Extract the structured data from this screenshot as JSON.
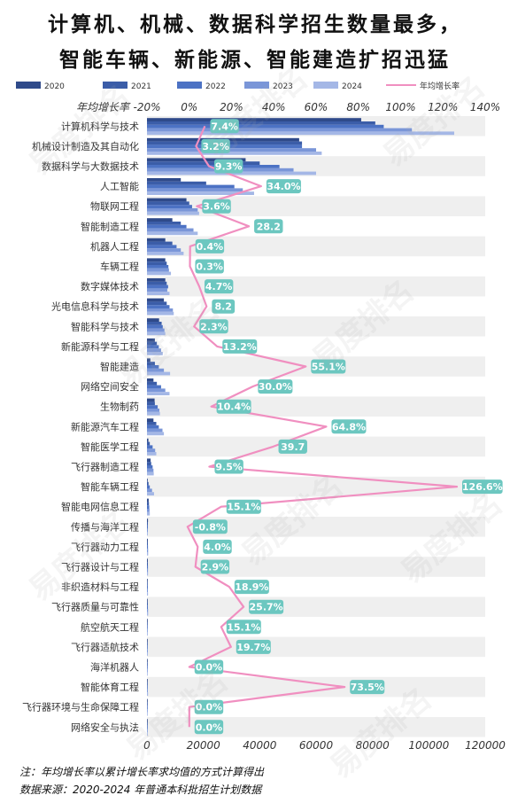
{
  "title_line1": "计算机、机械、数据科学招生数量最多，",
  "title_line2": "智能车辆、新能源、智能建造扩招迅猛",
  "watermark": "易度排名",
  "note": "注：年均增长率以累计增长率求均值的方式计算得出",
  "source": "数据来源：2020-2024 年普通本科批招生计划数据",
  "colors": {
    "series": [
      "#2f4a8a",
      "#3b5da8",
      "#4c72c4",
      "#7a96d8",
      "#a4b7e6"
    ],
    "line": "#f08fc0",
    "label_bg": "#6cc7c0",
    "band": "#efefef",
    "axis_text": "#333333"
  },
  "chart_data": {
    "type": "bar",
    "orientation": "horizontal",
    "top_axis_title": "年均增长率",
    "x_top_ticks": [
      "-20%",
      "0%",
      "20%",
      "40%",
      "60%",
      "80%",
      "100%",
      "120%",
      "140%"
    ],
    "x_top_range": [
      -20,
      140
    ],
    "x_bottom_ticks": [
      "0",
      "20000",
      "40000",
      "60000",
      "80000",
      "100000",
      "120000"
    ],
    "x_bottom_range": [
      0,
      120000
    ],
    "legend_position": "top",
    "series_names": [
      "2020",
      "2021",
      "2022",
      "2023",
      "2024"
    ],
    "line_name": "年均增长率",
    "categories": [
      "计算机科学与技术",
      "机械设计制造及其自动化",
      "数据科学与大数据技术",
      "人工智能",
      "物联网工程",
      "智能制造工程",
      "机器人工程",
      "车辆工程",
      "数字媒体技术",
      "光电信息科学与技术",
      "智能科学与技术",
      "新能源科学与工程",
      "智能建造",
      "网络空间安全",
      "生物制药",
      "新能源汽车工程",
      "智能医学工程",
      "飞行器制造工程",
      "智能车辆工程",
      "智能电网信息工程",
      "传播与海洋工程",
      "飞行器动力工程",
      "飞行器设计与工程",
      "非织造材料与工程",
      "飞行器质量与可靠性",
      "航空航天工程",
      "飞行器适航技术",
      "海洋机器人",
      "智能体育工程",
      "飞行器环境与生命保障工程",
      "网络安全与执法"
    ],
    "series": [
      {
        "name": "2020",
        "values": [
          76000,
          54000,
          35000,
          12000,
          14000,
          9000,
          6500,
          6500,
          6500,
          6000,
          4300,
          2800,
          1200,
          2300,
          2700,
          2300,
          500,
          1300,
          200,
          600,
          350,
          300,
          300,
          200,
          200,
          150,
          150,
          50,
          30,
          30,
          30
        ]
      },
      {
        "name": "2021",
        "values": [
          81000,
          55000,
          40000,
          21000,
          15000,
          12000,
          9000,
          7000,
          7000,
          7000,
          5200,
          3500,
          2800,
          3500,
          2800,
          3300,
          1000,
          1500,
          550,
          700,
          320,
          320,
          320,
          250,
          300,
          200,
          200,
          80,
          80,
          40,
          30
        ]
      },
      {
        "name": "2022",
        "values": [
          84000,
          55000,
          47000,
          31000,
          16000,
          14000,
          10500,
          7600,
          7500,
          8000,
          5600,
          4200,
          4200,
          5000,
          3800,
          4200,
          2000,
          2000,
          1000,
          800,
          320,
          350,
          340,
          300,
          320,
          240,
          250,
          120,
          150,
          40,
          30
        ]
      },
      {
        "name": "2023",
        "values": [
          94000,
          60000,
          52000,
          34000,
          18000,
          16500,
          12000,
          7800,
          7200,
          9200,
          6200,
          5000,
          6000,
          6500,
          4400,
          5500,
          2900,
          2300,
          1800,
          900,
          310,
          400,
          350,
          330,
          380,
          260,
          300,
          140,
          300,
          40,
          30
        ]
      },
      {
        "name": "2024",
        "values": [
          109000,
          62000,
          60000,
          38000,
          18500,
          18000,
          13000,
          8500,
          8000,
          9500,
          6500,
          5600,
          8200,
          8000,
          4600,
          6000,
          3300,
          2400,
          2500,
          1000,
          300,
          420,
          370,
          360,
          420,
          280,
          320,
          140,
          380,
          40,
          30
        ]
      }
    ],
    "growth_rate": [
      7.4,
      3.2,
      9.3,
      34.0,
      3.6,
      28.2,
      0.4,
      0.3,
      4.7,
      8.2,
      2.3,
      13.2,
      55.1,
      30.0,
      10.4,
      64.8,
      39.7,
      9.5,
      126.6,
      15.1,
      -0.8,
      4.0,
      2.9,
      18.9,
      25.7,
      15.1,
      19.7,
      0.0,
      73.5,
      0.0,
      0.0
    ],
    "growth_labels": [
      "7.4%",
      "3.2%",
      "9.3%",
      "34.0%",
      "3.6%",
      "28.2",
      "0.4%",
      "0.3%",
      "4.7%",
      "8.2",
      "2.3%",
      "13.2%",
      "55.1%",
      "30.0%",
      "10.4%",
      "64.8%",
      "39.7",
      "9.5%",
      "126.6%",
      "15.1%",
      "-0.8%",
      "4.0%",
      "2.9%",
      "18.9%",
      "25.7%",
      "15.1%",
      "19.7%",
      "0.0%",
      "73.5%",
      "0.0%",
      "0.0%"
    ]
  }
}
